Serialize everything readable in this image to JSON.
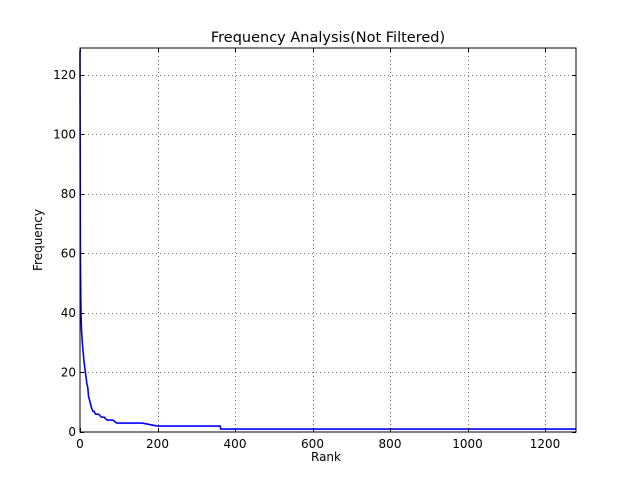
{
  "chart_data": {
    "type": "line",
    "title": "Frequency Analysis(Not Filtered)",
    "xlabel": "Rank",
    "ylabel": "Frequency",
    "xlim": [
      0,
      1280
    ],
    "ylim": [
      0,
      129
    ],
    "xticks": [
      0,
      200,
      400,
      600,
      800,
      1000,
      1200
    ],
    "yticks": [
      0,
      20,
      40,
      60,
      80,
      100,
      120
    ],
    "grid": true,
    "series": [
      {
        "color": "#0000ff",
        "x": [
          0,
          1,
          2,
          3,
          4,
          5,
          6,
          8,
          10,
          12,
          14,
          16,
          18,
          20,
          22,
          24,
          26,
          28,
          30,
          33,
          36,
          40,
          48,
          55,
          62,
          70,
          75,
          85,
          95,
          120,
          160,
          200,
          250,
          300,
          362,
          363,
          400,
          600,
          800,
          1000,
          1200,
          1280
        ],
        "y": [
          128,
          60,
          45,
          38,
          34,
          32,
          30,
          27,
          24,
          22,
          20,
          18,
          16,
          15,
          12,
          11,
          10,
          9,
          8,
          7,
          7,
          6,
          6,
          5,
          5,
          4,
          4,
          4,
          3,
          3,
          3,
          2,
          2,
          2,
          2,
          1,
          1,
          1,
          1,
          1,
          1,
          1
        ]
      }
    ]
  }
}
